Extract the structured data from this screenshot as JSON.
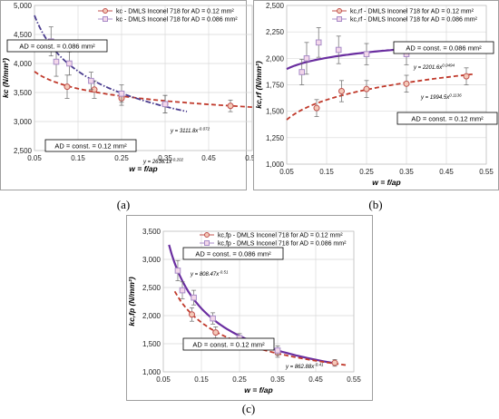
{
  "chart_data": [
    {
      "type": "scatter",
      "panel_label": "(a)",
      "xlabel": "w = f/ap",
      "ylabel": "kc (N/mm²)",
      "xlim": [
        0.05,
        0.55
      ],
      "ylim": [
        2500,
        5000
      ],
      "x_ticks": [
        "0.05",
        "0.15",
        "0.25",
        "0.35",
        "0.45",
        "0.55"
      ],
      "y_ticks": [
        "2,500",
        "3,000",
        "3,500",
        "4,000",
        "4,500",
        "5,000"
      ],
      "grid": true,
      "legend_position": "top-center",
      "series": [
        {
          "name": "kc - DMLS Inconel 718 for AD = 0.12 mm²",
          "color": "#c0504d",
          "marker": "circle",
          "x": [
            0.125,
            0.1875,
            0.25,
            0.35,
            0.5
          ],
          "y": [
            3600,
            3550,
            3400,
            3300,
            3270
          ],
          "err": [
            200,
            150,
            120,
            150,
            100
          ]
        },
        {
          "name": "kc - DMLS Inconel 718 for AD = 0.086 mm²",
          "color": "#a88cc8",
          "marker": "square",
          "x": [
            0.088,
            0.1,
            0.13,
            0.18,
            0.25,
            0.35
          ],
          "y": [
            4380,
            4030,
            4000,
            3700,
            3480,
            3300
          ],
          "err": [
            250,
            250,
            200,
            150,
            150,
            150
          ]
        }
      ],
      "fits": [
        {
          "label": "y = 3111.8x^-0.072",
          "coef": 3111.8,
          "exp": -0.072,
          "color": "#c0392b",
          "style": "dash",
          "range": [
            0.05,
            0.55
          ]
        },
        {
          "label": "y = 2636.1x^-0.202",
          "coef": 2636.1,
          "exp": -0.202,
          "color": "#4b3d8f",
          "style": "dashdot",
          "range": [
            0.05,
            0.4
          ]
        }
      ],
      "annotations": [
        "AD = const. = 0.086 mm²",
        "AD = const. = 0.12 mm²"
      ]
    },
    {
      "type": "scatter",
      "panel_label": "(b)",
      "xlabel": "w = f/ap",
      "ylabel": "kc,rf (N/mm²)",
      "xlim": [
        0.05,
        0.55
      ],
      "ylim": [
        1000,
        2500
      ],
      "x_ticks": [
        "0.05",
        "0.15",
        "0.25",
        "0.35",
        "0.45",
        "0.55"
      ],
      "y_ticks": [
        "1,000",
        "1,250",
        "1,500",
        "1,750",
        "2,000",
        "2,250",
        "2,500"
      ],
      "grid": true,
      "legend_position": "top-center",
      "series": [
        {
          "name": "kc,rf - DMLS Inconel 718 for AD = 0.12 mm²",
          "color": "#c0504d",
          "marker": "circle",
          "x": [
            0.125,
            0.1875,
            0.25,
            0.35,
            0.5
          ],
          "y": [
            1530,
            1690,
            1710,
            1760,
            1830
          ],
          "err": [
            80,
            100,
            80,
            80,
            80
          ]
        },
        {
          "name": "kc,rf - DMLS Inconel 718 for AD = 0.086 mm²",
          "color": "#a88cc8",
          "marker": "square",
          "x": [
            0.088,
            0.1,
            0.13,
            0.18,
            0.25,
            0.35
          ],
          "y": [
            1870,
            2000,
            2150,
            2080,
            2040,
            2040
          ],
          "err": [
            120,
            150,
            140,
            130,
            100,
            100
          ]
        }
      ],
      "fits": [
        {
          "label": "y = 2201.6x^0.0494",
          "coef": 2201.6,
          "exp": 0.0494,
          "color": "#6a2ea0",
          "style": "solid",
          "range": [
            0.05,
            0.45
          ]
        },
        {
          "label": "y = 1994.5x^0.1136",
          "coef": 1994.5,
          "exp": 0.1136,
          "color": "#c0392b",
          "style": "dash",
          "range": [
            0.05,
            0.52
          ]
        }
      ],
      "annotations": [
        "AD = const. = 0.086 mm²",
        "AD = const. = 0.12 mm²"
      ]
    },
    {
      "type": "scatter",
      "panel_label": "(c)",
      "xlabel": "w = f/ap",
      "ylabel": "kc,fp (N/mm²)",
      "xlim": [
        0.05,
        0.55
      ],
      "ylim": [
        1000,
        3500
      ],
      "x_ticks": [
        "0.05",
        "0.15",
        "0.25",
        "0.35",
        "0.45",
        "0.55"
      ],
      "y_ticks": [
        "1,000",
        "1,500",
        "2,000",
        "2,500",
        "3,000",
        "3,500"
      ],
      "grid": true,
      "legend_position": "top-center",
      "series": [
        {
          "name": "kc,fp - DMLS Inconel 718 for AD = 0.12 mm²",
          "color": "#c0504d",
          "marker": "circle",
          "x": [
            0.125,
            0.1875,
            0.25,
            0.35,
            0.5
          ],
          "y": [
            2020,
            1700,
            1560,
            1340,
            1160
          ],
          "err": [
            120,
            100,
            80,
            80,
            60
          ]
        },
        {
          "name": "kc,fp - DMLS Inconel 718 for AD = 0.086 mm²",
          "color": "#a88cc8",
          "marker": "square",
          "x": [
            0.088,
            0.1,
            0.13,
            0.18,
            0.25,
            0.35
          ],
          "y": [
            2800,
            2450,
            2320,
            1950,
            1600,
            1380
          ],
          "err": [
            180,
            150,
            130,
            100,
            80,
            80
          ]
        }
      ],
      "fits": [
        {
          "label": "y = 808.47x^-0.51",
          "coef": 808.47,
          "exp": -0.51,
          "color": "#6a2ea0",
          "style": "solid",
          "range": [
            0.065,
            0.5
          ]
        },
        {
          "label": "y = 862.88x^-0.41",
          "coef": 862.88,
          "exp": -0.41,
          "color": "#c0392b",
          "style": "dash",
          "range": [
            0.08,
            0.53
          ]
        }
      ],
      "annotations": [
        "AD = const. = 0.086 mm²",
        "AD = const. = 0.12 mm²"
      ]
    }
  ]
}
